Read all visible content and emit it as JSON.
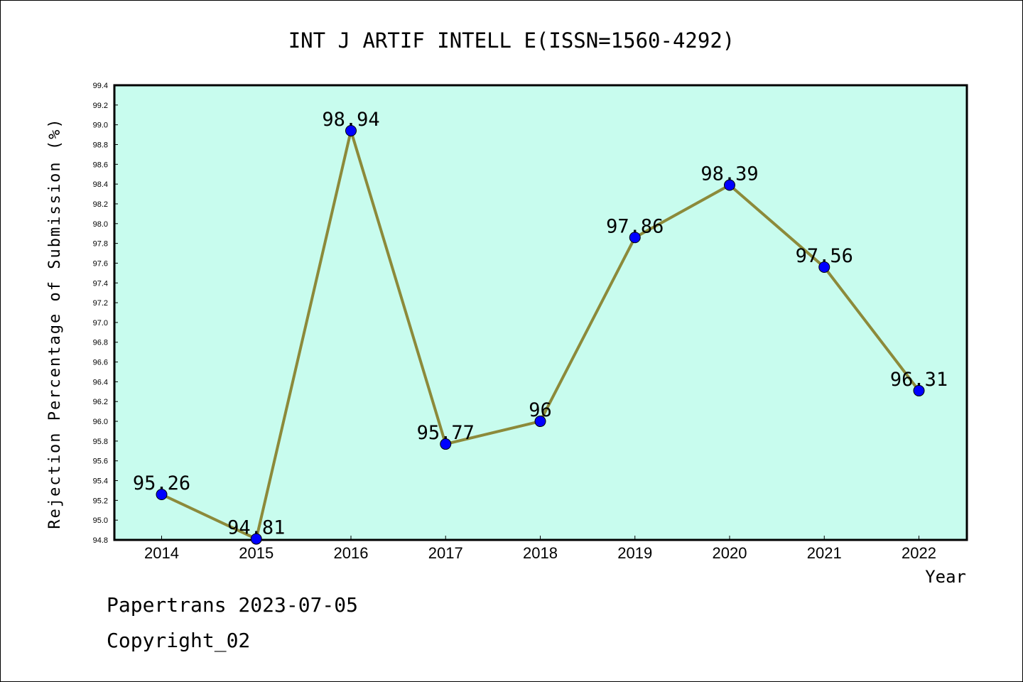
{
  "chart_data": {
    "type": "line",
    "title": "INT J ARTIF INTELL E(ISSN=1560-4292)",
    "xlabel": "Year",
    "ylabel": "Rejection Percentage of Submission (%)",
    "x": [
      "2014",
      "2015",
      "2016",
      "2017",
      "2018",
      "2019",
      "2020",
      "2021",
      "2022"
    ],
    "values": [
      95.26,
      94.81,
      98.94,
      95.77,
      96,
      97.86,
      98.39,
      97.56,
      96.31
    ],
    "data_labels": [
      "95.26",
      "94.81",
      "98.94",
      "95.77",
      "96",
      "97.86",
      "98.39",
      "97.56",
      "96.31"
    ],
    "ylim": [
      94.8,
      99.4
    ],
    "yticks": [
      "94.8",
      "95.0",
      "95.2",
      "95.4",
      "95.6",
      "95.8",
      "96.0",
      "96.2",
      "96.4",
      "96.6",
      "96.8",
      "97.0",
      "97.2",
      "97.4",
      "97.6",
      "97.8",
      "98.0",
      "98.2",
      "98.4",
      "98.6",
      "98.8",
      "99.0",
      "99.2",
      "99.4"
    ],
    "grid": false,
    "colors": {
      "plot_background": "#c8fcee",
      "line": "#8c8a3a",
      "marker": "#0000ff"
    }
  },
  "footer": {
    "line1": "Papertrans 2023-07-05",
    "line2": "Copyright_02"
  }
}
